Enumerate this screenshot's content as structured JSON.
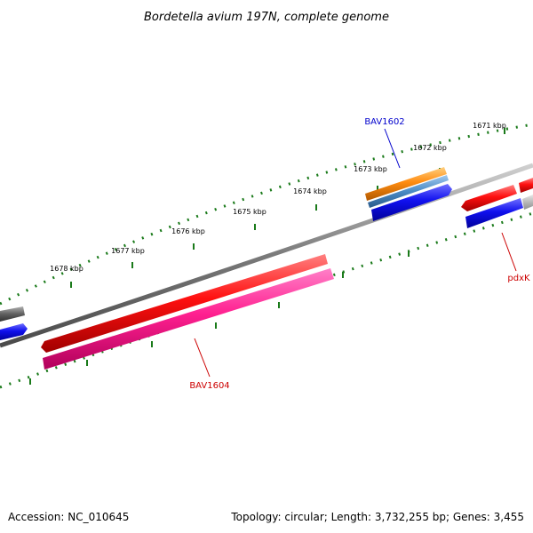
{
  "title": "Bordetella avium 197N, complete genome",
  "kbp_labels": [
    "1671 kbp",
    "1672 kbp",
    "1673 kbp",
    "1674 kbp",
    "1675 kbp",
    "1676 kbp",
    "1677 kbp",
    "1678 kbp"
  ],
  "gene_labels": {
    "bav1602": "BAV1602",
    "pdxk": "pdxK",
    "bav1604": "BAV1604"
  },
  "footer": {
    "accession": "Accession: NC_010645",
    "topology": "Topology: circular; Length: 3,732,255 bp; Genes: 3,455"
  },
  "colors": {
    "backbone": "#7f7f7f",
    "tick": "#1a7a1a",
    "gene_red": "#ff1a1a",
    "gene_pink": "#ff2a9a",
    "gene_blue": "#1010ee",
    "gene_orange": "#ff8c10",
    "gene_steel": "#4a8ac4",
    "gene_gray": "#666666",
    "label_blue": "#0000cc",
    "label_red": "#cc0000"
  }
}
